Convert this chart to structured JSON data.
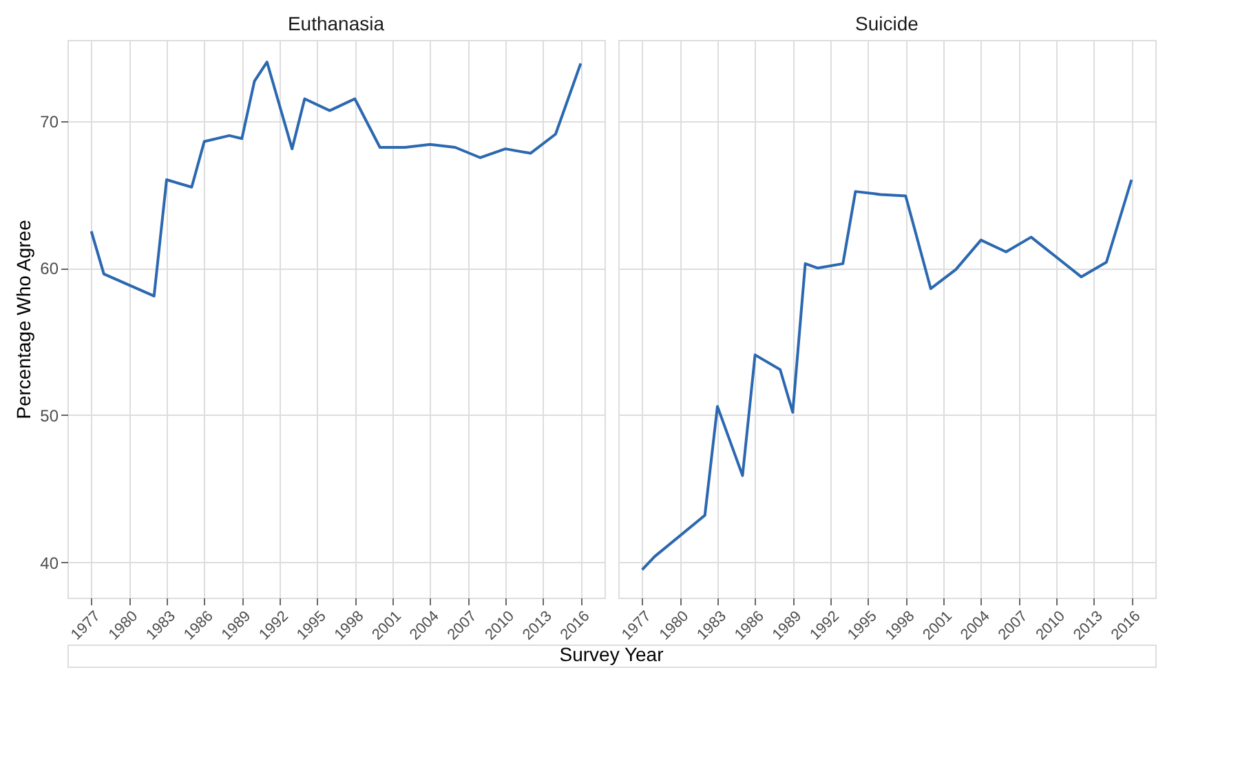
{
  "chart_data": [
    {
      "type": "line",
      "title": "Euthanasia",
      "ylabel": "Percentage Who Agree",
      "xlabel": "Survey Year",
      "x": [
        1977,
        1978,
        1982,
        1983,
        1985,
        1986,
        1988,
        1989,
        1990,
        1991,
        1993,
        1994,
        1996,
        1998,
        2000,
        2002,
        2004,
        2006,
        2008,
        2010,
        2012,
        2014,
        2016
      ],
      "series": [
        {
          "color": "#2b68b0",
          "values": [
            62.5,
            59.6,
            58.1,
            66.0,
            65.5,
            68.6,
            69.0,
            68.8,
            72.7,
            74.0,
            68.1,
            71.5,
            70.7,
            71.5,
            68.2,
            68.2,
            68.4,
            68.2,
            67.5,
            68.1,
            67.8,
            69.1,
            73.9
          ]
        }
      ],
      "xlim": [
        1975.1,
        2017.9
      ],
      "ylim": [
        37.6,
        75.5
      ],
      "xticks": [
        1977,
        1980,
        1983,
        1986,
        1989,
        1992,
        1995,
        1998,
        2001,
        2004,
        2007,
        2010,
        2013,
        2016
      ],
      "yticks": [
        40,
        50,
        60,
        70
      ],
      "grid": true
    },
    {
      "type": "line",
      "title": "Suicide",
      "x": [
        1977,
        1978,
        1982,
        1983,
        1985,
        1986,
        1988,
        1989,
        1990,
        1991,
        1993,
        1994,
        1996,
        1998,
        2000,
        2002,
        2004,
        2006,
        2008,
        2012,
        2014,
        2016
      ],
      "series": [
        {
          "color": "#2b68b0",
          "values": [
            39.5,
            40.4,
            43.2,
            50.6,
            45.9,
            54.1,
            53.1,
            50.2,
            60.3,
            60.0,
            60.3,
            65.2,
            65.0,
            64.9,
            58.6,
            59.9,
            61.9,
            61.1,
            62.1,
            59.4,
            60.4,
            66.0
          ]
        }
      ],
      "xlim": [
        1975.1,
        2017.9
      ],
      "ylim": [
        37.6,
        75.5
      ],
      "xticks": [
        1977,
        1980,
        1983,
        1986,
        1989,
        1992,
        1995,
        1998,
        2001,
        2004,
        2007,
        2010,
        2013,
        2016
      ],
      "yticks": [
        40,
        50,
        60,
        70
      ],
      "grid": true,
      "tick_labels": "x"
    }
  ]
}
